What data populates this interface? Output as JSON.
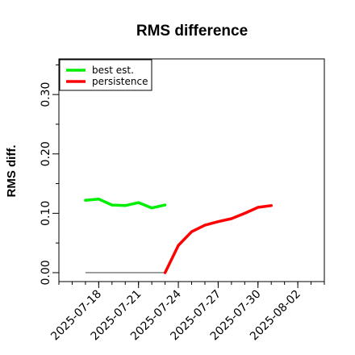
{
  "chart_data": {
    "type": "line",
    "title": "RMS difference",
    "xlabel": "",
    "ylabel": "RMS diff.",
    "x_ticks": [
      "2025-07-18",
      "2025-07-21",
      "2025-07-24",
      "2025-07-27",
      "2025-07-30",
      "2025-08-02"
    ],
    "y_ticks": [
      "0.00",
      "0.10",
      "0.20",
      "0.30"
    ],
    "ylim": [
      -0.015,
      0.36
    ],
    "xlim": [
      "2025-07-15",
      "2025-08-04"
    ],
    "grid": false,
    "legend_position": "top-left",
    "series": [
      {
        "name": "best est.",
        "color": "#00ee00",
        "points": [
          {
            "x": "2025-07-17",
            "y": 0.122
          },
          {
            "x": "2025-07-18",
            "y": 0.124
          },
          {
            "x": "2025-07-19",
            "y": 0.114
          },
          {
            "x": "2025-07-20",
            "y": 0.113
          },
          {
            "x": "2025-07-21",
            "y": 0.118
          },
          {
            "x": "2025-07-22",
            "y": 0.109
          },
          {
            "x": "2025-07-23",
            "y": 0.114
          }
        ]
      },
      {
        "name": "persistence",
        "color": "#ff0000",
        "points": [
          {
            "x": "2025-07-23",
            "y": 0.0
          },
          {
            "x": "2025-07-24",
            "y": 0.046
          },
          {
            "x": "2025-07-25",
            "y": 0.069
          },
          {
            "x": "2025-07-26",
            "y": 0.08
          },
          {
            "x": "2025-07-27",
            "y": 0.086
          },
          {
            "x": "2025-07-28",
            "y": 0.091
          },
          {
            "x": "2025-07-29",
            "y": 0.1
          },
          {
            "x": "2025-07-30",
            "y": 0.11
          },
          {
            "x": "2025-07-31",
            "y": 0.113
          }
        ]
      }
    ],
    "reference_line": {
      "x_start": "2025-07-17",
      "x_end": "2025-07-23",
      "y": 0.0,
      "color": "#555555"
    }
  }
}
